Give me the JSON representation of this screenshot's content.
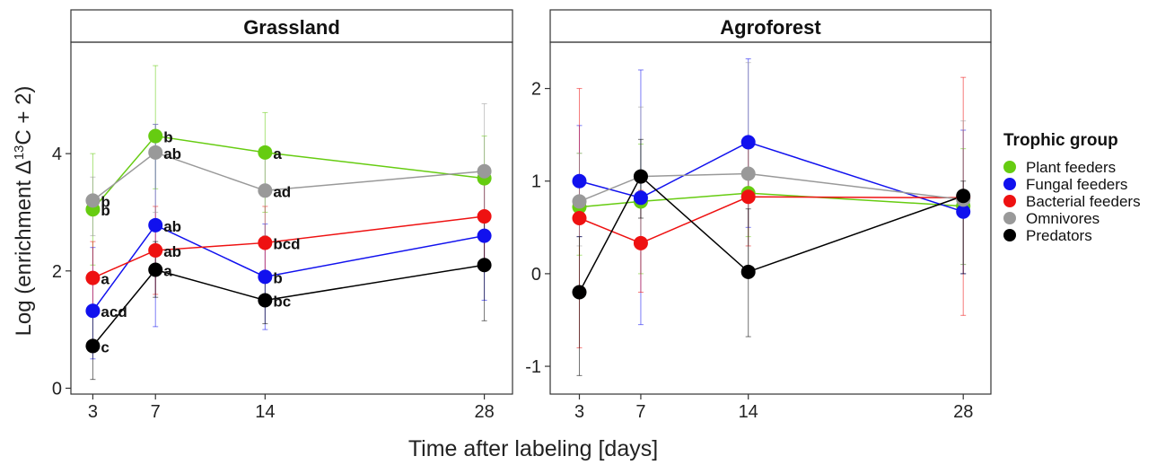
{
  "chart_data": {
    "type": "line",
    "x_values": [
      3,
      7,
      14,
      28
    ],
    "xlabel": "Time after labeling [days]",
    "ylabel_prefix": "Log (enrichment  Δ",
    "ylabel_sup": "13",
    "ylabel_suffix": "C + 2)",
    "legend": {
      "title": "Trophic group",
      "placement": "right",
      "entries": [
        {
          "name": "Plant feeders",
          "color": "#66cc11"
        },
        {
          "name": "Fungal feeders",
          "color": "#1111ee"
        },
        {
          "name": "Bacterial feeders",
          "color": "#ee1111"
        },
        {
          "name": "Omnivores",
          "color": "#999999"
        },
        {
          "name": "Predators",
          "color": "#000000"
        }
      ]
    },
    "panels": [
      {
        "title": "Grassland",
        "ylim": [
          -0.1,
          5.9
        ],
        "yticks": [
          0,
          2,
          4
        ],
        "series": [
          {
            "name": "Plant feeders",
            "color": "#66cc11",
            "y": [
              3.05,
              4.3,
              4.02,
              3.58
            ],
            "err": [
              [
                2.1,
                4.0
              ],
              [
                3.4,
                5.5
              ],
              [
                3.0,
                4.7
              ],
              [
                2.9,
                4.3
              ]
            ],
            "labels": [
              "b",
              "b",
              "a",
              ""
            ]
          },
          {
            "name": "Fungal feeders",
            "color": "#1111ee",
            "y": [
              1.32,
              2.78,
              1.9,
              2.6
            ],
            "err": [
              [
                0.5,
                2.4
              ],
              [
                1.05,
                4.5
              ],
              [
                1.0,
                2.8
              ],
              [
                1.5,
                3.6
              ]
            ],
            "labels": [
              "acd",
              "ab",
              "b",
              ""
            ]
          },
          {
            "name": "Bacterial feeders",
            "color": "#ee1111",
            "y": [
              1.88,
              2.35,
              2.48,
              2.93
            ],
            "err": [
              [
                1.3,
                2.5
              ],
              [
                1.6,
                3.1
              ],
              [
                1.8,
                3.1
              ],
              [
                2.0,
                3.7
              ]
            ],
            "labels": [
              "a",
              "ab",
              "bcd",
              ""
            ]
          },
          {
            "name": "Omnivores",
            "color": "#999999",
            "y": [
              3.2,
              4.02,
              3.37,
              3.7
            ],
            "err": [
              [
                2.6,
                3.6
              ],
              [
                3.0,
                4.5
              ],
              [
                2.6,
                4.1
              ],
              [
                2.5,
                4.85
              ]
            ],
            "labels": [
              "b",
              "ab",
              "ad",
              ""
            ]
          },
          {
            "name": "Predators",
            "color": "#000000",
            "y": [
              0.72,
              2.02,
              1.5,
              2.1
            ],
            "err": [
              [
                0.15,
                1.3
              ],
              [
                1.55,
                2.5
              ],
              [
                1.1,
                2.0
              ],
              [
                1.15,
                3.0
              ]
            ],
            "labels": [
              "c",
              "a",
              "bc",
              ""
            ]
          }
        ]
      },
      {
        "title": "Agroforest",
        "ylim": [
          -1.3,
          2.5
        ],
        "yticks": [
          -1,
          0,
          1,
          2
        ],
        "series": [
          {
            "name": "Plant feeders",
            "color": "#66cc11",
            "y": [
              0.72,
              0.78,
              0.87,
              0.73
            ],
            "err": [
              [
                0.2,
                1.3
              ],
              [
                0.0,
                1.4
              ],
              [
                0.4,
                1.4
              ],
              [
                0.1,
                1.35
              ]
            ],
            "labels": [
              "",
              "",
              "",
              ""
            ]
          },
          {
            "name": "Fungal feeders",
            "color": "#1111ee",
            "y": [
              1.0,
              0.82,
              1.42,
              0.67
            ],
            "err": [
              [
                0.4,
                1.6
              ],
              [
                -0.55,
                2.2
              ],
              [
                0.5,
                2.32
              ],
              [
                0.0,
                1.55
              ]
            ],
            "labels": [
              "",
              "",
              "",
              ""
            ]
          },
          {
            "name": "Bacterial feeders",
            "color": "#ee1111",
            "y": [
              0.6,
              0.33,
              0.83,
              0.82
            ],
            "err": [
              [
                -0.8,
                2.0
              ],
              [
                -0.2,
                0.9
              ],
              [
                0.3,
                1.4
              ],
              [
                -0.45,
                2.12
              ]
            ],
            "labels": [
              "",
              "",
              "",
              ""
            ]
          },
          {
            "name": "Omnivores",
            "color": "#999999",
            "y": [
              0.78,
              1.05,
              1.08,
              0.8
            ],
            "err": [
              [
                0.3,
                1.3
              ],
              [
                0.3,
                1.8
              ],
              [
                0.0,
                2.28
              ],
              [
                0.1,
                1.65
              ]
            ],
            "labels": [
              "",
              "",
              "",
              ""
            ]
          },
          {
            "name": "Predators",
            "color": "#000000",
            "y": [
              -0.2,
              1.05,
              0.02,
              0.84
            ],
            "err": [
              [
                -1.1,
                0.4
              ],
              [
                0.6,
                1.45
              ],
              [
                -0.68,
                0.7
              ],
              [
                0.0,
                1.0
              ]
            ],
            "labels": [
              "",
              "",
              "",
              ""
            ]
          }
        ]
      }
    ]
  }
}
